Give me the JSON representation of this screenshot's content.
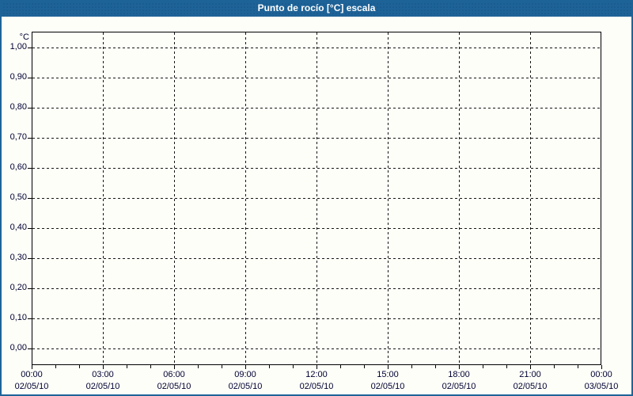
{
  "window": {
    "title": "Punto de rocío [°C] escala"
  },
  "colors": {
    "titlebar": "#1e6398",
    "window_border": "#1e6398",
    "background": "#fdfef8",
    "grid": "#161616",
    "axis": "#000000",
    "label_text": "#000033",
    "title_text": "#ffffff"
  },
  "chart_data": {
    "type": "line",
    "title": "Punto de rocío [°C] escala",
    "ylabel": "°C",
    "ylim": [
      0.0,
      1.0
    ],
    "y_tick_step": 0.1,
    "y_tick_labels": [
      "1,00",
      "0,90",
      "0,80",
      "0,70",
      "0,60",
      "0,50",
      "0,40",
      "0,30",
      "0,20",
      "0,10",
      "0,00"
    ],
    "x_axis": {
      "total_hours": 24,
      "minor_tick_every_hours": 1,
      "major_tick_every_hours": 3,
      "labels": [
        {
          "time": "00:00",
          "date": "02/05/10"
        },
        {
          "time": "03:00",
          "date": "02/05/10"
        },
        {
          "time": "06:00",
          "date": "02/05/10"
        },
        {
          "time": "09:00",
          "date": "02/05/10"
        },
        {
          "time": "12:00",
          "date": "02/05/10"
        },
        {
          "time": "15:00",
          "date": "02/05/10"
        },
        {
          "time": "18:00",
          "date": "02/05/10"
        },
        {
          "time": "21:00",
          "date": "02/05/10"
        },
        {
          "time": "00:00",
          "date": "03/05/10"
        }
      ]
    },
    "series": [],
    "grid": true,
    "legend_position": "none"
  }
}
